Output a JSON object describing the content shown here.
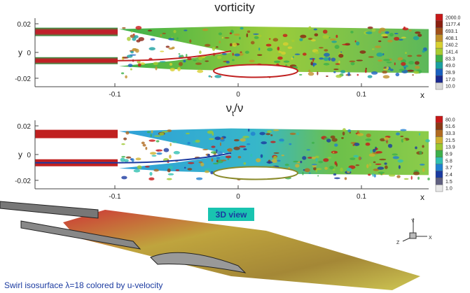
{
  "panels": [
    {
      "title": "vorticity",
      "y_label": "y",
      "x_label": "x",
      "y_ticks": [
        "0.02",
        "0",
        "-0.02"
      ],
      "x_ticks": [
        "-0.1",
        "0",
        "0.1"
      ],
      "colorbar": [
        "2000.0",
        "1177.4",
        "693.1",
        "408.1",
        "240.2",
        "141.4",
        "83.3",
        "49.0",
        "28.9",
        "17.0",
        "10.0"
      ]
    },
    {
      "title": {
        "symbol": "ν",
        "subscript": "t",
        "rest": "/ν"
      },
      "y_label": "y",
      "x_label": "x",
      "y_ticks": [
        "0.02",
        "0",
        "-0.02"
      ],
      "x_ticks": [
        "-0.1",
        "0",
        "0.1"
      ],
      "colorbar": [
        "80.0",
        "51.6",
        "33.3",
        "21.5",
        "13.9",
        "8.9",
        "5.8",
        "3.7",
        "2.4",
        "1.5",
        "1.0"
      ]
    }
  ],
  "view3d": {
    "label": "3D view",
    "axes": [
      "Y",
      "Z",
      "X"
    ]
  },
  "caption": "Swirl isosurface λ=18 colored by u-velocity"
}
